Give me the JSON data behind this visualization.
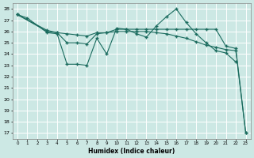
{
  "xlabel": "Humidex (Indice chaleur)",
  "bg_color": "#cce8e4",
  "grid_color": "#ffffff",
  "line_color": "#1a6b5e",
  "xlim": [
    -0.5,
    23.5
  ],
  "ylim": [
    16.5,
    28.5
  ],
  "xticks": [
    0,
    1,
    2,
    3,
    4,
    5,
    6,
    7,
    8,
    9,
    10,
    11,
    12,
    13,
    14,
    15,
    16,
    17,
    18,
    19,
    20,
    21,
    22,
    23
  ],
  "yticks": [
    17,
    18,
    19,
    20,
    21,
    22,
    23,
    24,
    25,
    26,
    27,
    28
  ],
  "s1_x": [
    0,
    1,
    3,
    4,
    5,
    6,
    7,
    8,
    9,
    10,
    11,
    12,
    13,
    14,
    15,
    16,
    17,
    18,
    19,
    20,
    21,
    22
  ],
  "s1_y": [
    27.5,
    27.2,
    25.9,
    25.8,
    23.1,
    23.1,
    23.0,
    25.4,
    24.0,
    26.3,
    26.2,
    25.8,
    25.5,
    26.5,
    27.3,
    28.0,
    26.8,
    25.8,
    25.0,
    24.3,
    24.1,
    23.3
  ],
  "s2_x": [
    0,
    3,
    4,
    5,
    6,
    7,
    8,
    9,
    10,
    11,
    12,
    13,
    14,
    15,
    16,
    17,
    18,
    19,
    20,
    21,
    22,
    23
  ],
  "s2_y": [
    27.5,
    26.0,
    25.9,
    25.8,
    25.7,
    25.6,
    25.9,
    25.9,
    26.0,
    26.0,
    26.0,
    26.0,
    25.9,
    25.8,
    25.6,
    25.4,
    25.1,
    24.8,
    24.6,
    24.4,
    24.3,
    17.0
  ],
  "s3_x": [
    0,
    3,
    4,
    5,
    6,
    7,
    8,
    9,
    10,
    11,
    12,
    13,
    14,
    15,
    16,
    17,
    18,
    19,
    20,
    21,
    22,
    23
  ],
  "s3_y": [
    27.5,
    26.1,
    25.9,
    25.0,
    25.0,
    24.9,
    25.8,
    25.9,
    26.2,
    26.2,
    26.2,
    26.2,
    26.2,
    26.2,
    26.2,
    26.2,
    26.2,
    26.2,
    26.2,
    24.7,
    24.5,
    17.0
  ]
}
